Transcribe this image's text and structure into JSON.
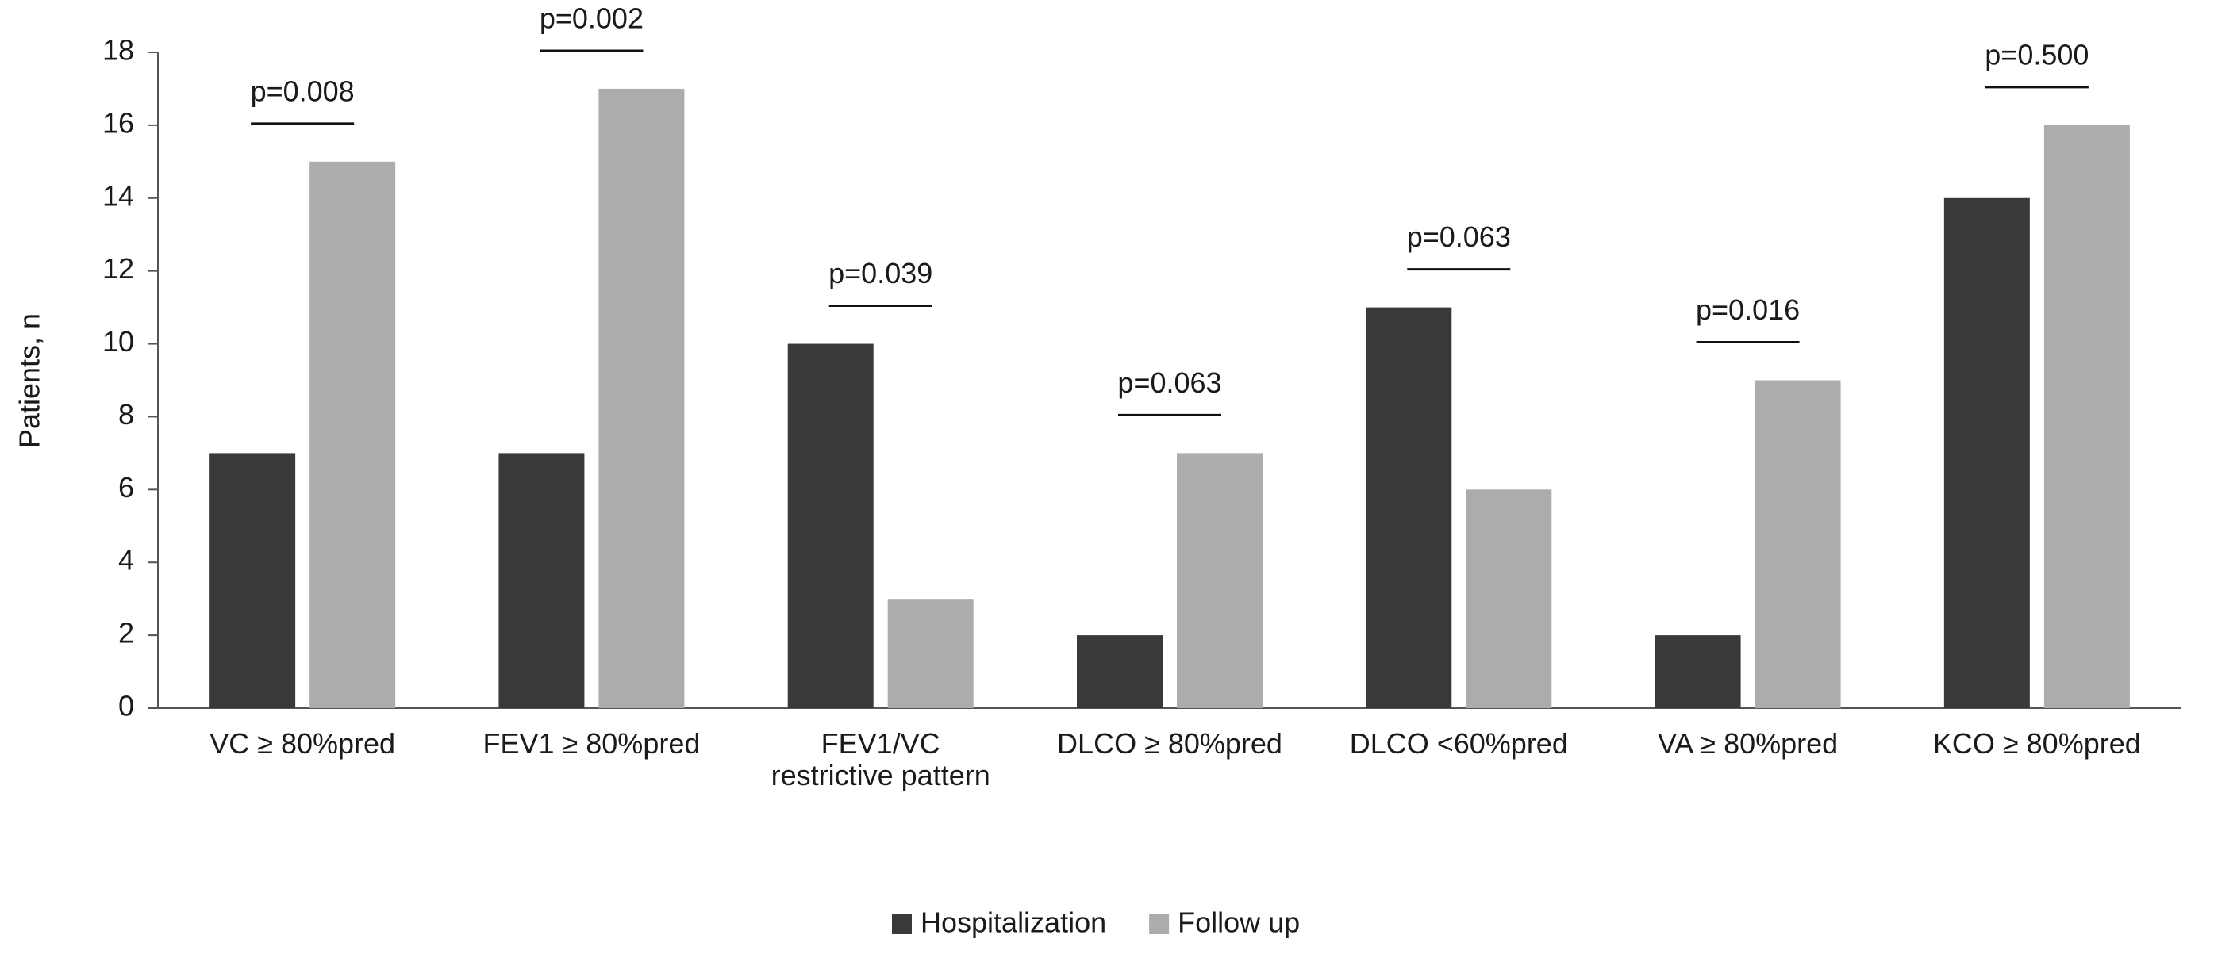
{
  "chart_data": {
    "type": "bar",
    "y_label": "Patients, n",
    "categories": [
      "VC ≥ 80%pred",
      "FEV1 ≥ 80%pred",
      "FEV1/VC\nrestrictive pattern",
      "DLCO ≥ 80%pred",
      "DLCO <60%pred",
      "VA ≥ 80%pred",
      "KCO ≥ 80%pred"
    ],
    "series": [
      {
        "name": "Hospitalization",
        "color": "#3b3838",
        "values": [
          7,
          7,
          10,
          2,
          11,
          2,
          14
        ]
      },
      {
        "name": "Follow up",
        "color": "#aeabab",
        "values": [
          15,
          17,
          3,
          7,
          6,
          9,
          16
        ]
      }
    ],
    "p_values": [
      "p=0.008",
      "p=0.002",
      "p=0.039",
      "p=0.063",
      "p=0.063",
      "p=0.016",
      "p=0.500"
    ],
    "ylim": [
      0,
      18
    ],
    "yticks": [
      0,
      2,
      4,
      6,
      8,
      10,
      12,
      14,
      16,
      18
    ],
    "grid": false,
    "legend": "bottom"
  }
}
